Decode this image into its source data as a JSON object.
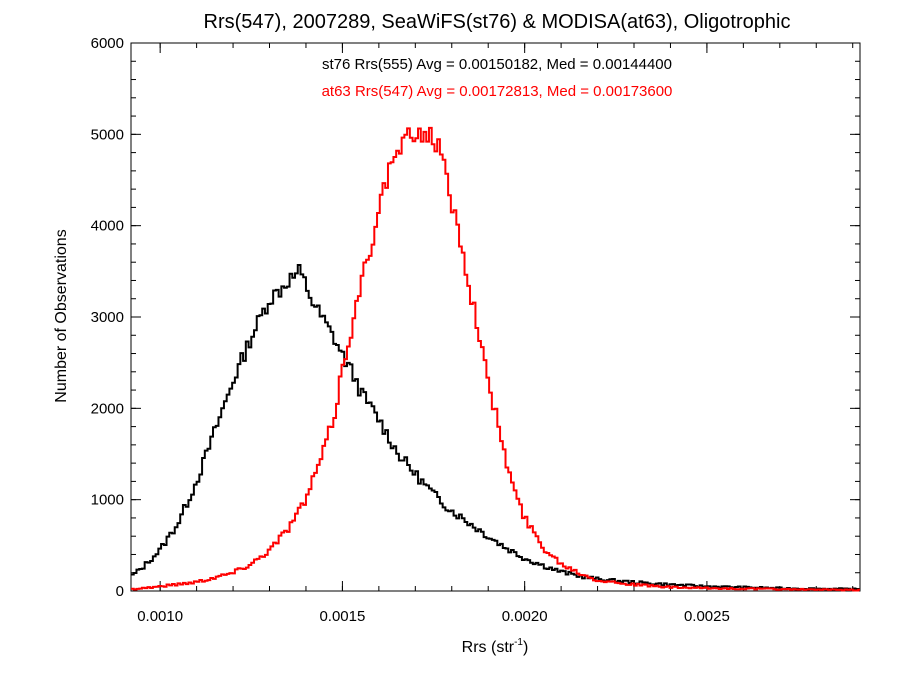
{
  "chart_data": {
    "type": "line",
    "title": "Rrs(547), 2007289, SeaWiFS(st76) & MODISA(at63), Oligotrophic",
    "xlabel_base": "Rrs (str",
    "xlabel_sup": "-1",
    "xlabel_close": ")",
    "ylabel": "Number of Observations",
    "xlim": [
      0.00092,
      0.00292
    ],
    "ylim": [
      0,
      6000
    ],
    "xticks": [
      0.001,
      0.0015,
      0.002,
      0.0025
    ],
    "xtick_labels": [
      "0.0010",
      "0.0015",
      "0.0020",
      "0.0025"
    ],
    "yticks": [
      0,
      1000,
      2000,
      3000,
      4000,
      5000,
      6000
    ],
    "ytick_labels": [
      "0",
      "1000",
      "2000",
      "3000",
      "4000",
      "5000",
      "6000"
    ],
    "grid": false,
    "annotations": [
      {
        "text": "st76 Rrs(555) Avg = 0.00150182, Med = 0.00144400",
        "color": "#000000"
      },
      {
        "text": "at63 Rrs(547) Avg = 0.00172813, Med = 0.00173600",
        "color": "#ff0000"
      }
    ],
    "series": [
      {
        "color": "#000000",
        "x": [
          0.00092,
          0.00095,
          0.001,
          0.00105,
          0.0011,
          0.00115,
          0.0012,
          0.00125,
          0.0013,
          0.00133,
          0.00135,
          0.00137,
          0.00138,
          0.0014,
          0.00142,
          0.00145,
          0.00148,
          0.0015,
          0.00153,
          0.00155,
          0.00158,
          0.0016,
          0.00165,
          0.0017,
          0.00175,
          0.0018,
          0.00185,
          0.0019,
          0.00195,
          0.002,
          0.00205,
          0.0021,
          0.00215,
          0.0022,
          0.0023,
          0.0024,
          0.0025,
          0.0026,
          0.0027,
          0.0028,
          0.00292
        ],
        "y": [
          160,
          250,
          450,
          750,
          1200,
          1750,
          2300,
          2780,
          3200,
          3300,
          3400,
          3450,
          3500,
          3350,
          3150,
          2950,
          2750,
          2580,
          2370,
          2180,
          2000,
          1880,
          1520,
          1280,
          1060,
          880,
          740,
          600,
          470,
          360,
          280,
          210,
          165,
          130,
          95,
          70,
          50,
          40,
          30,
          25,
          20
        ]
      },
      {
        "color": "#ff0000",
        "x": [
          0.00092,
          0.001,
          0.0011,
          0.0012,
          0.00125,
          0.0013,
          0.00135,
          0.0014,
          0.00145,
          0.00148,
          0.0015,
          0.00153,
          0.00155,
          0.00158,
          0.0016,
          0.00163,
          0.00165,
          0.00168,
          0.0017,
          0.00172,
          0.00174,
          0.00176,
          0.00178,
          0.0018,
          0.00183,
          0.00185,
          0.00188,
          0.0019,
          0.00193,
          0.00195,
          0.00198,
          0.002,
          0.00205,
          0.0021,
          0.00215,
          0.0022,
          0.0023,
          0.0024,
          0.0025,
          0.0026,
          0.0027,
          0.0028,
          0.00292
        ],
        "y": [
          20,
          50,
          100,
          200,
          300,
          450,
          680,
          1000,
          1550,
          1950,
          2450,
          2950,
          3350,
          3800,
          4250,
          4600,
          4800,
          4950,
          5000,
          5020,
          5000,
          4900,
          4620,
          4250,
          3750,
          3300,
          2750,
          2250,
          1800,
          1400,
          1000,
          800,
          480,
          300,
          200,
          120,
          70,
          40,
          30,
          25,
          20,
          15,
          10
        ]
      }
    ]
  }
}
